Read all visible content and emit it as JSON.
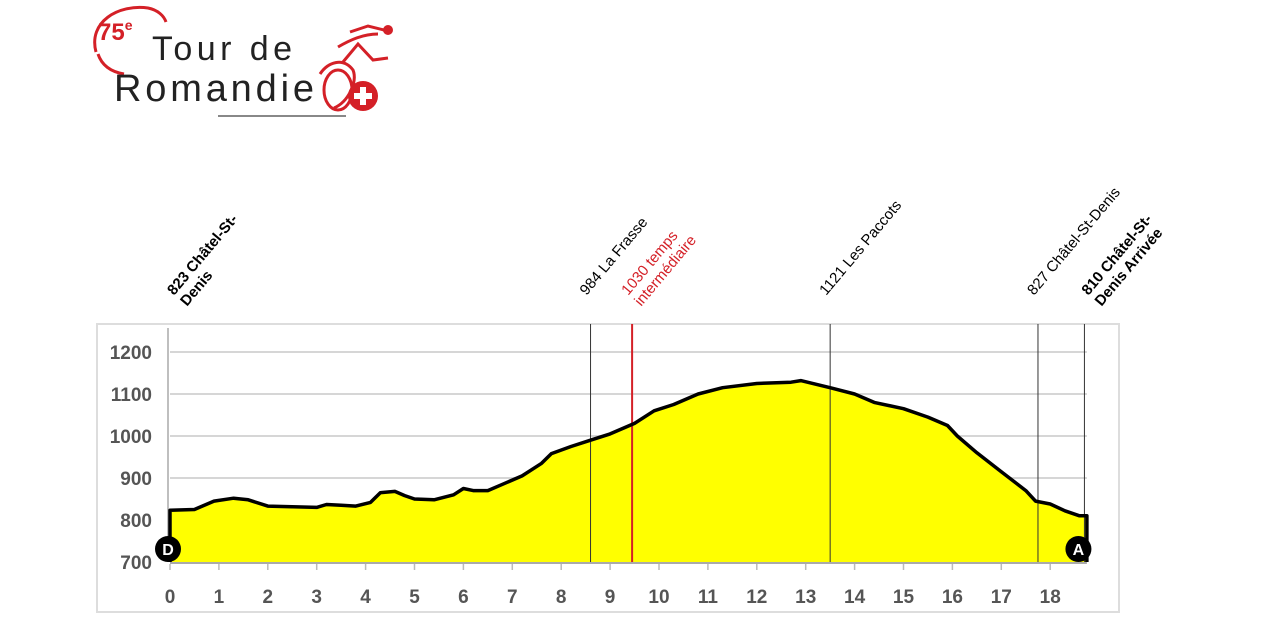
{
  "logo": {
    "edition": "75",
    "edition_suffix": "e",
    "line1": "Tour de",
    "line2": "Romandie",
    "accent_color": "#d42027"
  },
  "chart_data": {
    "type": "area",
    "title": "",
    "xlabel": "",
    "ylabel": "",
    "xlim": [
      0,
      18.8
    ],
    "ylim": [
      700,
      1250
    ],
    "x_ticks": [
      0,
      1,
      2,
      3,
      4,
      5,
      6,
      7,
      8,
      9,
      10,
      11,
      12,
      13,
      14,
      15,
      16,
      17,
      18
    ],
    "y_ticks": [
      700,
      800,
      900,
      1000,
      1100,
      1200
    ],
    "grid": "horizontal",
    "fill_color": "#ffff00",
    "line_color": "#000000",
    "series": [
      {
        "name": "elevation",
        "x": [
          0,
          0.5,
          0.9,
          1.3,
          1.6,
          2.0,
          3.0,
          3.2,
          3.5,
          3.8,
          4.1,
          4.3,
          4.6,
          4.8,
          5.0,
          5.4,
          5.8,
          6.0,
          6.2,
          6.5,
          6.8,
          7.2,
          7.6,
          7.8,
          8.2,
          8.6,
          9.0,
          9.5,
          9.9,
          10.3,
          10.8,
          11.3,
          12.0,
          12.7,
          12.9,
          13.5,
          14.0,
          14.4,
          15.0,
          15.5,
          15.9,
          16.1,
          16.5,
          17.0,
          17.5,
          17.7,
          18.0,
          18.3,
          18.6,
          18.75
        ],
        "values": [
          823,
          825,
          845,
          852,
          848,
          833,
          830,
          837,
          835,
          833,
          842,
          865,
          868,
          858,
          850,
          848,
          860,
          875,
          870,
          870,
          885,
          905,
          935,
          958,
          975,
          990,
          1005,
          1030,
          1060,
          1075,
          1100,
          1115,
          1125,
          1128,
          1132,
          1115,
          1100,
          1080,
          1065,
          1045,
          1025,
          1000,
          960,
          915,
          870,
          845,
          838,
          822,
          810,
          810
        ]
      }
    ],
    "annotations": [
      {
        "km": 0,
        "text": "823 Châtel-St-Denis",
        "line1": "823 Châtel-St-",
        "line2": "Denis",
        "bold": true,
        "color": "#000000",
        "marker_line": false
      },
      {
        "km": 8.6,
        "text": "984 La Frasse",
        "line1": "984 La Frasse",
        "line2": "",
        "bold": false,
        "color": "#000000",
        "marker_line": true
      },
      {
        "km": 9.45,
        "text": "1030 temps intermédiaire",
        "line1": "1030 temps",
        "line2": "intermédiaire",
        "bold": false,
        "color": "#d42027",
        "marker_line": true
      },
      {
        "km": 13.5,
        "text": "1121 Les Paccots",
        "line1": "1121 Les Paccots",
        "line2": "",
        "bold": false,
        "color": "#000000",
        "marker_line": true
      },
      {
        "km": 17.75,
        "text": "827 Châtel-St-Denis",
        "line1": "827 Châtel-St-Denis",
        "line2": "",
        "bold": false,
        "color": "#000000",
        "marker_line": true
      },
      {
        "km": 18.7,
        "text": "810 Châtel-St-Denis Arrivée",
        "line1": "810 Châtel-St-",
        "line2": "Denis Arrivée",
        "bold": true,
        "color": "#000000",
        "marker_line": true
      }
    ],
    "markers": [
      {
        "km": 0,
        "label": "D",
        "meaning": "départ"
      },
      {
        "km": 18.7,
        "label": "A",
        "meaning": "arrivée"
      }
    ]
  }
}
